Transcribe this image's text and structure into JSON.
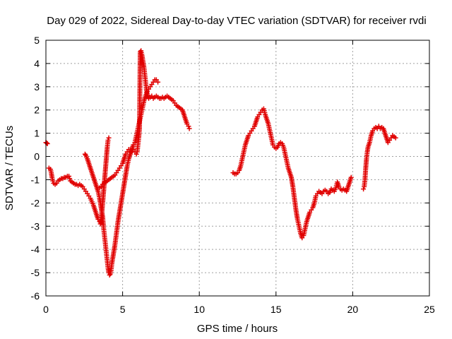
{
  "chart_data": {
    "type": "scatter",
    "title": "Day 029 of 2022, Sidereal Day-to-day VTEC variation (SDTVAR) for receiver rvdi",
    "xlabel": "GPS time / hours",
    "ylabel": "SDTVAR / TECUs",
    "xlim": [
      0,
      25
    ],
    "ylim": [
      -6,
      5
    ],
    "x_ticks": [
      0,
      5,
      10,
      15,
      20,
      25
    ],
    "y_ticks": [
      -6,
      -5,
      -4,
      -3,
      -2,
      -1,
      0,
      1,
      2,
      3,
      4,
      5
    ],
    "grid": true,
    "marker": "+",
    "color": "#e00000",
    "series": [
      {
        "segments": [
          [
            [
              0.0,
              0.6
            ],
            [
              0.05,
              0.58
            ],
            [
              0.1,
              0.55
            ]
          ],
          [
            [
              0.2,
              -0.5
            ],
            [
              0.3,
              -0.55
            ],
            [
              0.35,
              -0.7
            ],
            [
              0.4,
              -0.9
            ],
            [
              0.45,
              -1.05
            ],
            [
              0.5,
              -1.15
            ],
            [
              0.6,
              -1.2
            ],
            [
              0.7,
              -1.15
            ],
            [
              0.8,
              -1.05
            ],
            [
              0.9,
              -1.0
            ],
            [
              1.0,
              -0.95
            ],
            [
              1.1,
              -0.95
            ],
            [
              1.2,
              -0.9
            ],
            [
              1.3,
              -0.9
            ],
            [
              1.4,
              -0.85
            ],
            [
              1.5,
              -0.85
            ],
            [
              1.55,
              -0.95
            ],
            [
              1.6,
              -1.05
            ],
            [
              1.7,
              -1.1
            ],
            [
              1.8,
              -1.15
            ],
            [
              1.9,
              -1.2
            ],
            [
              2.0,
              -1.2
            ],
            [
              2.1,
              -1.25
            ],
            [
              2.2,
              -1.2
            ],
            [
              2.3,
              -1.25
            ],
            [
              2.4,
              -1.3
            ],
            [
              2.5,
              -1.4
            ],
            [
              2.6,
              -1.5
            ],
            [
              2.7,
              -1.6
            ],
            [
              2.8,
              -1.7
            ],
            [
              2.9,
              -1.8
            ],
            [
              3.0,
              -1.95
            ],
            [
              3.1,
              -2.1
            ],
            [
              3.2,
              -2.3
            ],
            [
              3.3,
              -2.5
            ],
            [
              3.4,
              -2.7
            ],
            [
              3.5,
              -2.8
            ],
            [
              3.55,
              -2.9
            ],
            [
              3.6,
              -2.7
            ],
            [
              3.65,
              -2.4
            ],
            [
              3.7,
              -2.0
            ],
            [
              3.75,
              -1.6
            ],
            [
              3.8,
              -1.2
            ],
            [
              3.85,
              -0.8
            ],
            [
              3.9,
              -0.4
            ],
            [
              3.95,
              0.0
            ],
            [
              4.0,
              0.4
            ],
            [
              4.05,
              0.7
            ],
            [
              4.1,
              0.8
            ]
          ],
          [
            [
              2.55,
              0.1
            ],
            [
              2.6,
              0.05
            ],
            [
              2.7,
              -0.1
            ],
            [
              2.8,
              -0.3
            ],
            [
              2.9,
              -0.5
            ],
            [
              3.0,
              -0.7
            ],
            [
              3.1,
              -0.9
            ],
            [
              3.2,
              -1.1
            ],
            [
              3.3,
              -1.3
            ],
            [
              3.4,
              -1.5
            ],
            [
              3.5,
              -1.8
            ],
            [
              3.6,
              -2.2
            ],
            [
              3.7,
              -2.6
            ],
            [
              3.75,
              -3.0
            ],
            [
              3.8,
              -3.3
            ],
            [
              3.85,
              -3.6
            ],
            [
              3.9,
              -3.9
            ],
            [
              3.95,
              -4.2
            ],
            [
              4.0,
              -4.5
            ],
            [
              4.05,
              -4.8
            ],
            [
              4.1,
              -5.0
            ],
            [
              4.15,
              -5.1
            ],
            [
              4.2,
              -5.05
            ],
            [
              4.25,
              -4.9
            ],
            [
              4.3,
              -4.6
            ],
            [
              4.4,
              -4.2
            ],
            [
              4.5,
              -3.8
            ],
            [
              4.6,
              -3.3
            ],
            [
              4.7,
              -2.8
            ],
            [
              4.8,
              -2.4
            ],
            [
              4.9,
              -2.0
            ],
            [
              5.0,
              -1.6
            ],
            [
              5.1,
              -1.2
            ],
            [
              5.2,
              -0.8
            ],
            [
              5.3,
              -0.4
            ],
            [
              5.4,
              -0.1
            ],
            [
              5.5,
              0.1
            ],
            [
              5.6,
              0.3
            ],
            [
              5.7,
              0.5
            ],
            [
              5.8,
              0.6
            ],
            [
              5.9,
              0.9
            ],
            [
              6.0,
              1.2
            ],
            [
              6.1,
              1.5
            ],
            [
              6.2,
              1.8
            ],
            [
              6.3,
              2.1
            ],
            [
              6.4,
              2.4
            ],
            [
              6.5,
              2.6
            ],
            [
              6.6,
              2.8
            ],
            [
              6.7,
              2.9
            ],
            [
              6.8,
              3.0
            ],
            [
              6.9,
              3.1
            ],
            [
              7.0,
              3.2
            ],
            [
              7.1,
              3.3
            ],
            [
              7.2,
              3.3
            ],
            [
              7.3,
              3.2
            ]
          ],
          [
            [
              3.5,
              -1.35
            ],
            [
              3.6,
              -1.3
            ],
            [
              3.7,
              -1.2
            ],
            [
              3.8,
              -1.15
            ],
            [
              3.9,
              -1.1
            ],
            [
              4.0,
              -1.05
            ],
            [
              4.1,
              -1.0
            ],
            [
              4.2,
              -0.95
            ],
            [
              4.3,
              -0.9
            ],
            [
              4.4,
              -0.85
            ],
            [
              4.5,
              -0.8
            ],
            [
              4.6,
              -0.7
            ],
            [
              4.7,
              -0.6
            ],
            [
              4.8,
              -0.5
            ],
            [
              4.9,
              -0.4
            ],
            [
              5.0,
              -0.3
            ],
            [
              5.1,
              -0.1
            ],
            [
              5.2,
              0.1
            ],
            [
              5.3,
              0.2
            ],
            [
              5.4,
              0.3
            ],
            [
              5.5,
              0.3
            ],
            [
              5.6,
              0.2
            ],
            [
              5.7,
              0.3
            ],
            [
              5.8,
              0.2
            ],
            [
              5.9,
              0.1
            ]
          ],
          [
            [
              5.95,
              0.2
            ],
            [
              6.0,
              0.5
            ],
            [
              6.05,
              0.8
            ],
            [
              6.1,
              1.2
            ],
            [
              6.15,
              4.5
            ],
            [
              6.2,
              4.55
            ],
            [
              6.25,
              4.4
            ],
            [
              6.3,
              4.2
            ],
            [
              6.35,
              4.0
            ],
            [
              6.4,
              3.8
            ],
            [
              6.45,
              3.5
            ],
            [
              6.5,
              3.2
            ],
            [
              6.55,
              2.9
            ],
            [
              6.6,
              2.7
            ],
            [
              6.7,
              2.5
            ],
            [
              6.8,
              2.55
            ],
            [
              6.9,
              2.6
            ],
            [
              7.0,
              2.5
            ],
            [
              7.1,
              2.55
            ],
            [
              7.2,
              2.6
            ],
            [
              7.3,
              2.55
            ],
            [
              7.4,
              2.5
            ],
            [
              7.5,
              2.5
            ],
            [
              7.6,
              2.55
            ],
            [
              7.7,
              2.5
            ],
            [
              7.8,
              2.55
            ],
            [
              7.9,
              2.6
            ],
            [
              8.0,
              2.55
            ],
            [
              8.1,
              2.5
            ],
            [
              8.2,
              2.45
            ],
            [
              8.3,
              2.4
            ],
            [
              8.4,
              2.3
            ],
            [
              8.5,
              2.2
            ],
            [
              8.6,
              2.15
            ],
            [
              8.7,
              2.1
            ],
            [
              8.8,
              2.05
            ],
            [
              8.9,
              2.0
            ],
            [
              9.0,
              1.8
            ],
            [
              9.1,
              1.6
            ],
            [
              9.2,
              1.4
            ],
            [
              9.3,
              1.3
            ],
            [
              9.35,
              1.2
            ]
          ],
          [
            [
              12.2,
              -0.7
            ],
            [
              12.3,
              -0.75
            ],
            [
              12.4,
              -0.75
            ],
            [
              12.5,
              -0.7
            ],
            [
              12.6,
              -0.6
            ],
            [
              12.7,
              -0.4
            ],
            [
              12.8,
              -0.1
            ],
            [
              12.9,
              0.2
            ],
            [
              13.0,
              0.5
            ],
            [
              13.1,
              0.7
            ],
            [
              13.2,
              0.9
            ],
            [
              13.3,
              1.0
            ],
            [
              13.4,
              1.1
            ],
            [
              13.5,
              1.2
            ],
            [
              13.6,
              1.3
            ],
            [
              13.7,
              1.5
            ],
            [
              13.8,
              1.7
            ],
            [
              13.9,
              1.8
            ],
            [
              14.0,
              1.9
            ],
            [
              14.1,
              2.0
            ],
            [
              14.2,
              2.05
            ],
            [
              14.3,
              1.8
            ],
            [
              14.4,
              1.6
            ],
            [
              14.5,
              1.4
            ],
            [
              14.6,
              1.1
            ],
            [
              14.7,
              0.8
            ],
            [
              14.8,
              0.5
            ],
            [
              14.9,
              0.4
            ],
            [
              15.0,
              0.35
            ],
            [
              15.1,
              0.4
            ],
            [
              15.2,
              0.55
            ],
            [
              15.3,
              0.6
            ],
            [
              15.4,
              0.55
            ],
            [
              15.5,
              0.4
            ],
            [
              15.6,
              0.1
            ],
            [
              15.7,
              -0.2
            ],
            [
              15.8,
              -0.5
            ],
            [
              15.9,
              -0.7
            ],
            [
              16.0,
              -0.9
            ],
            [
              16.1,
              -1.3
            ],
            [
              16.2,
              -1.8
            ],
            [
              16.3,
              -2.3
            ],
            [
              16.4,
              -2.7
            ],
            [
              16.5,
              -3.0
            ],
            [
              16.6,
              -3.3
            ],
            [
              16.7,
              -3.5
            ],
            [
              16.8,
              -3.4
            ],
            [
              16.9,
              -3.1
            ],
            [
              17.0,
              -2.8
            ],
            [
              17.1,
              -2.6
            ],
            [
              17.2,
              -2.4
            ],
            [
              17.3,
              -2.3
            ],
            [
              17.4,
              -2.2
            ],
            [
              17.5,
              -2.0
            ],
            [
              17.6,
              -1.7
            ],
            [
              17.7,
              -1.6
            ],
            [
              17.8,
              -1.5
            ],
            [
              17.9,
              -1.55
            ],
            [
              18.0,
              -1.6
            ],
            [
              18.1,
              -1.5
            ],
            [
              18.2,
              -1.45
            ],
            [
              18.3,
              -1.5
            ],
            [
              18.4,
              -1.6
            ],
            [
              18.5,
              -1.55
            ],
            [
              18.6,
              -1.4
            ],
            [
              18.7,
              -1.45
            ],
            [
              18.8,
              -1.5
            ],
            [
              18.9,
              -1.35
            ],
            [
              19.0,
              -1.1
            ],
            [
              19.1,
              -1.3
            ],
            [
              19.2,
              -1.4
            ],
            [
              19.3,
              -1.45
            ],
            [
              19.4,
              -1.4
            ],
            [
              19.5,
              -1.45
            ],
            [
              19.6,
              -1.5
            ],
            [
              19.7,
              -1.3
            ],
            [
              19.8,
              -1.1
            ],
            [
              19.9,
              -0.9
            ]
          ],
          [
            [
              20.7,
              -1.4
            ],
            [
              20.75,
              -1.3
            ],
            [
              20.8,
              -1.0
            ],
            [
              20.85,
              -0.5
            ],
            [
              20.9,
              -0.1
            ],
            [
              20.95,
              0.2
            ],
            [
              21.0,
              0.4
            ],
            [
              21.1,
              0.6
            ],
            [
              21.2,
              0.9
            ],
            [
              21.3,
              1.1
            ],
            [
              21.4,
              1.2
            ],
            [
              21.5,
              1.25
            ],
            [
              21.6,
              1.2
            ],
            [
              21.7,
              1.3
            ],
            [
              21.8,
              1.2
            ],
            [
              21.9,
              1.25
            ],
            [
              22.0,
              1.2
            ],
            [
              22.1,
              1.0
            ],
            [
              22.2,
              0.8
            ],
            [
              22.3,
              0.6
            ],
            [
              22.4,
              0.7
            ],
            [
              22.5,
              0.8
            ],
            [
              22.6,
              0.9
            ],
            [
              22.7,
              0.85
            ],
            [
              22.8,
              0.8
            ]
          ]
        ]
      }
    ]
  }
}
